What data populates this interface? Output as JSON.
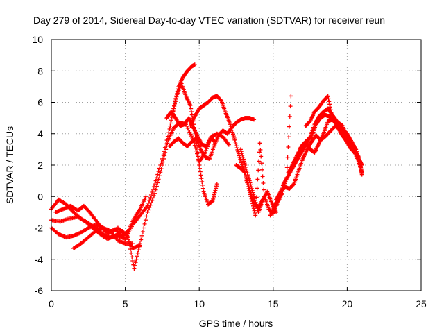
{
  "chart_data": {
    "type": "scatter",
    "title": "Day 279 of 2014, Sidereal Day-to-day VTEC variation (SDTVAR) for receiver reun",
    "xlabel": "GPS time / hours",
    "ylabel": "SDTVAR / TECUs",
    "xlim": [
      0,
      25
    ],
    "ylim": [
      -6,
      10
    ],
    "xticks": [
      0,
      5,
      10,
      15,
      20,
      25
    ],
    "yticks": [
      -6,
      -4,
      -2,
      0,
      2,
      4,
      6,
      8,
      10
    ],
    "grid": true,
    "marker": "+",
    "color": "#ff0000",
    "series": [
      {
        "x": [
          0.0,
          0.5,
          1.0,
          1.5,
          2.0,
          2.5,
          3.0,
          3.5,
          4.0,
          4.5,
          5.0,
          5.5,
          6.0,
          6.5,
          7.0,
          7.5,
          8.0,
          8.3,
          8.6,
          8.9,
          9.2,
          9.5,
          9.7
        ],
        "y": [
          -0.8,
          -0.2,
          -0.5,
          -1.0,
          -1.4,
          -1.7,
          -2.0,
          -2.4,
          -2.6,
          -2.5,
          -2.7,
          -1.8,
          -1.2,
          -0.6,
          0.8,
          2.4,
          4.3,
          5.8,
          7.0,
          7.6,
          8.0,
          8.3,
          8.4
        ]
      },
      {
        "x": [
          0.0,
          0.6,
          1.2,
          1.8,
          2.3,
          2.8,
          3.3,
          3.8,
          4.3,
          4.8,
          5.2,
          5.6,
          6.0,
          6.5,
          7.0,
          7.5,
          7.9,
          8.3,
          8.7,
          9.1,
          9.6,
          10.0,
          10.4,
          10.8,
          11.2,
          11.6,
          12.0
        ],
        "y": [
          -1.5,
          -1.6,
          -1.4,
          -1.3,
          -1.6,
          -2.0,
          -2.4,
          -2.7,
          -2.5,
          -2.2,
          -2.6,
          -4.6,
          -3.0,
          -1.0,
          0.2,
          2.0,
          3.6,
          4.4,
          4.7,
          4.6,
          3.6,
          2.2,
          2.8,
          3.8,
          4.0,
          3.8,
          3.3
        ]
      },
      {
        "x": [
          0.0,
          0.5,
          1.0,
          1.5,
          2.0,
          2.5,
          3.0,
          3.5,
          4.0,
          4.5,
          5.0,
          5.5,
          6.0
        ],
        "y": [
          -2.0,
          -2.4,
          -2.6,
          -2.5,
          -2.3,
          -2.0,
          -1.8,
          -2.0,
          -2.3,
          -2.0,
          -2.4,
          -3.3,
          -3.1
        ]
      },
      {
        "x": [
          1.5,
          2.0,
          2.5,
          3.0,
          3.5,
          4.0,
          4.5,
          5.0,
          5.5
        ],
        "y": [
          -3.3,
          -3.0,
          -2.6,
          -2.2,
          -2.0,
          -2.2,
          -2.8,
          -3.0,
          -3.0
        ]
      },
      {
        "x": [
          0.3,
          0.8,
          1.3,
          1.8,
          2.2,
          2.6,
          3.0,
          3.4,
          3.8,
          4.3,
          4.8,
          5.2,
          5.6,
          6.0,
          6.4
        ],
        "y": [
          -1.0,
          -0.8,
          -0.6,
          -0.9,
          -0.6,
          -1.0,
          -1.5,
          -2.0,
          -2.3,
          -2.1,
          -2.5,
          -2.2,
          -1.4,
          -0.8,
          0.0
        ]
      },
      {
        "x": [
          7.8,
          8.1,
          8.4,
          8.7,
          9.0,
          9.3,
          9.6,
          9.9,
          10.2,
          10.5,
          10.8,
          11.0
        ],
        "y": [
          5.0,
          5.4,
          5.0,
          4.5,
          4.6,
          5.0,
          4.4,
          3.8,
          3.3,
          3.2,
          3.8,
          3.5
        ]
      },
      {
        "x": [
          8.0,
          8.3,
          8.6,
          8.9,
          9.2,
          9.5,
          9.8,
          10.1,
          10.4,
          10.7,
          11.0,
          11.3,
          11.6,
          11.9,
          12.2,
          12.5,
          12.8,
          13.1,
          13.4,
          13.7
        ],
        "y": [
          3.2,
          3.5,
          3.7,
          3.4,
          3.2,
          3.5,
          3.7,
          3.0,
          2.5,
          2.4,
          3.2,
          3.9,
          4.2,
          4.0,
          4.4,
          4.7,
          4.9,
          5.0,
          5.0,
          4.9
        ]
      },
      {
        "x": [
          8.2,
          8.5,
          8.8,
          9.1,
          9.4,
          9.7,
          10.0,
          10.3,
          10.6,
          10.9,
          11.2
        ],
        "y": [
          5.3,
          6.5,
          7.2,
          6.4,
          5.8,
          4.2,
          2.0,
          0.3,
          -0.5,
          -0.3,
          0.8
        ]
      },
      {
        "x": [
          9.4,
          9.7,
          10.0,
          10.3,
          10.6,
          10.9,
          11.2,
          11.5,
          11.8,
          12.1,
          12.4,
          12.7,
          13.0
        ],
        "y": [
          4.5,
          5.1,
          5.6,
          5.8,
          6.0,
          6.3,
          6.4,
          6.1,
          5.3,
          4.6,
          3.6,
          2.6,
          1.7
        ]
      },
      {
        "x": [
          12.5,
          12.8,
          13.1,
          13.4,
          13.7,
          14.0,
          14.3,
          14.6,
          14.9,
          15.2
        ],
        "y": [
          2.0,
          1.8,
          1.5,
          0.5,
          -0.4,
          -0.7,
          -0.2,
          0.3,
          -0.4,
          -1.0
        ]
      },
      {
        "x": [
          13.2,
          13.5,
          13.8,
          14.1,
          14.4,
          14.7,
          15.0,
          15.3,
          15.6,
          15.9,
          16.2
        ],
        "y": [
          1.0,
          0.0,
          -1.2,
          3.4,
          0.0,
          -0.8,
          -1.1,
          -0.4,
          0.2,
          1.2,
          6.4
        ]
      },
      {
        "x": [
          14.8,
          15.1,
          15.4,
          15.7,
          16.0,
          16.3,
          16.6,
          16.9,
          17.2,
          17.5,
          17.8,
          18.1,
          18.4,
          18.7,
          19.0,
          19.3,
          19.6,
          19.9,
          20.2,
          20.5,
          20.8,
          21.0
        ],
        "y": [
          -1.2,
          -0.6,
          0.0,
          0.8,
          1.3,
          1.8,
          2.3,
          2.8,
          3.3,
          3.8,
          4.6,
          5.1,
          5.4,
          5.6,
          5.2,
          4.8,
          4.0,
          3.6,
          3.1,
          2.8,
          2.2,
          1.5
        ]
      },
      {
        "x": [
          15.2,
          15.5,
          15.8,
          16.1,
          16.4,
          16.7,
          17.0,
          17.3,
          17.6,
          17.9,
          18.2,
          18.5,
          18.8,
          19.1,
          19.4,
          19.7,
          20.0,
          20.3,
          20.6,
          20.9,
          21.0
        ],
        "y": [
          -0.2,
          0.3,
          0.6,
          0.5,
          0.8,
          1.6,
          2.4,
          3.0,
          3.5,
          3.9,
          3.6,
          3.8,
          4.1,
          4.4,
          4.6,
          4.3,
          4.0,
          3.5,
          3.0,
          2.0,
          1.4
        ]
      },
      {
        "x": [
          16.0,
          16.3,
          16.6,
          16.9,
          17.2,
          17.5,
          17.8,
          18.1,
          18.4,
          18.7,
          19.0,
          19.3,
          19.6,
          19.9,
          20.2,
          20.5,
          20.8,
          21.0
        ],
        "y": [
          1.5,
          2.0,
          2.6,
          3.2,
          3.5,
          3.0,
          2.8,
          3.4,
          4.0,
          4.8,
          4.9,
          4.6,
          4.2,
          3.9,
          3.3,
          3.0,
          2.4,
          2.0
        ]
      },
      {
        "x": [
          17.2,
          17.5,
          17.8,
          18.1,
          18.4,
          18.7,
          19.0,
          19.3,
          19.6,
          19.9,
          20.2,
          20.5,
          20.8
        ],
        "y": [
          4.5,
          4.8,
          5.4,
          5.7,
          6.1,
          6.4,
          5.0,
          4.5,
          4.0,
          3.6,
          3.4,
          3.0,
          2.5
        ]
      },
      {
        "x": [
          16.4,
          16.7,
          17.0,
          17.3,
          17.6,
          17.9,
          18.2,
          18.5,
          18.8,
          19.1,
          19.4,
          19.7,
          20.0
        ],
        "y": [
          2.2,
          2.6,
          3.2,
          3.6,
          3.8,
          4.6,
          5.0,
          5.2,
          5.1,
          4.8,
          4.7,
          4.5,
          3.7
        ]
      },
      {
        "x": [
          12.8,
          13.1,
          13.4,
          13.7,
          14.0,
          14.3
        ],
        "y": [
          3.0,
          2.0,
          1.0,
          0.0,
          -1.0,
          -0.2
        ]
      }
    ]
  }
}
